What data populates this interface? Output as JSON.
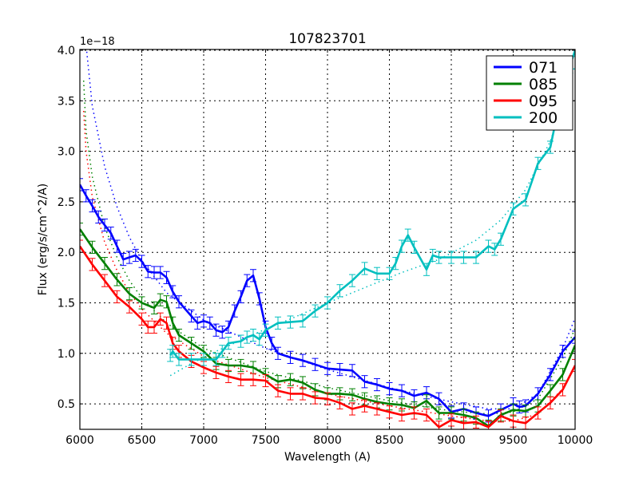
{
  "figure": {
    "title": "107823701",
    "xlabel": "Wavelength (A)",
    "ylabel": "Flux (erg/s/cm^2/A)",
    "offset_label": "1e−18"
  },
  "chart_data": {
    "type": "line",
    "title": "107823701",
    "xlabel": "Wavelength (A)",
    "ylabel": "Flux (erg/s/cm^2/A)",
    "y_scale_factor": "1e-18",
    "xlim": [
      6000,
      10000
    ],
    "ylim": [
      0.25,
      4.02
    ],
    "xticks": [
      6000,
      6500,
      7000,
      7500,
      8000,
      8500,
      9000,
      9500,
      10000
    ],
    "xtick_labels": [
      "6000",
      "6500",
      "7000",
      "7500",
      "8000",
      "8500",
      "9000",
      "9500",
      "10000"
    ],
    "yticks": [
      0.5,
      1.0,
      1.5,
      2.0,
      2.5,
      3.0,
      3.5,
      4.0
    ],
    "ytick_labels": [
      "0.5",
      "1.0",
      "1.5",
      "2.0",
      "2.5",
      "3.0",
      "3.5",
      "4.0"
    ],
    "grid": true,
    "legend_position": "upper right",
    "series": [
      {
        "name": "071",
        "color": "#0000ff",
        "error": 0.06,
        "x": [
          6000,
          6050,
          6100,
          6150,
          6200,
          6250,
          6300,
          6350,
          6400,
          6450,
          6500,
          6550,
          6600,
          6650,
          6700,
          6750,
          6800,
          6900,
          6950,
          7000,
          7050,
          7100,
          7150,
          7200,
          7250,
          7300,
          7350,
          7400,
          7450,
          7500,
          7550,
          7600,
          7700,
          7800,
          7900,
          8000,
          8100,
          8200,
          8300,
          8400,
          8500,
          8600,
          8700,
          8800,
          8900,
          9000,
          9100,
          9200,
          9300,
          9400,
          9500,
          9550,
          9600,
          9700,
          9800,
          9900,
          10000
        ],
        "values": [
          2.67,
          2.56,
          2.46,
          2.35,
          2.27,
          2.19,
          2.06,
          1.93,
          1.95,
          1.97,
          1.91,
          1.81,
          1.8,
          1.8,
          1.75,
          1.61,
          1.51,
          1.37,
          1.3,
          1.32,
          1.3,
          1.23,
          1.21,
          1.26,
          1.42,
          1.56,
          1.72,
          1.77,
          1.54,
          1.26,
          1.1,
          1.0,
          0.96,
          0.93,
          0.89,
          0.85,
          0.84,
          0.83,
          0.72,
          0.69,
          0.65,
          0.63,
          0.58,
          0.61,
          0.55,
          0.42,
          0.45,
          0.41,
          0.38,
          0.44,
          0.5,
          0.47,
          0.48,
          0.6,
          0.79,
          1.02,
          1.16
        ],
        "fit": {
          "x": [
            6000,
            6050,
            6100,
            6200,
            6300,
            6400,
            6500,
            6700,
            7000,
            7500,
            8000,
            8500,
            9000,
            9300,
            9500,
            9700,
            9900,
            10000
          ],
          "values": [
            5.2,
            4.05,
            3.45,
            2.85,
            2.45,
            2.15,
            1.92,
            1.6,
            1.33,
            1.05,
            0.84,
            0.66,
            0.52,
            0.45,
            0.45,
            0.6,
            1.05,
            1.35
          ]
        }
      },
      {
        "name": "085",
        "color": "#008000",
        "error": 0.06,
        "x": [
          6000,
          6100,
          6200,
          6300,
          6400,
          6500,
          6600,
          6650,
          6700,
          6750,
          6800,
          6900,
          7000,
          7100,
          7200,
          7300,
          7400,
          7500,
          7600,
          7700,
          7800,
          7900,
          8000,
          8100,
          8200,
          8300,
          8400,
          8500,
          8600,
          8700,
          8800,
          8900,
          9000,
          9100,
          9200,
          9300,
          9400,
          9500,
          9600,
          9700,
          9800,
          9900,
          10000
        ],
        "values": [
          2.23,
          2.05,
          1.89,
          1.73,
          1.59,
          1.5,
          1.45,
          1.53,
          1.51,
          1.3,
          1.18,
          1.1,
          1.02,
          0.9,
          0.88,
          0.88,
          0.86,
          0.79,
          0.72,
          0.74,
          0.71,
          0.64,
          0.6,
          0.6,
          0.59,
          0.55,
          0.52,
          0.5,
          0.49,
          0.46,
          0.53,
          0.41,
          0.41,
          0.39,
          0.36,
          0.28,
          0.39,
          0.44,
          0.43,
          0.48,
          0.63,
          0.79,
          1.08
        ],
        "fit": {
          "x": [
            6030,
            6050,
            6100,
            6200,
            6300,
            6400,
            6500,
            6700,
            7000,
            7500,
            8000,
            8500,
            9000,
            9300,
            9500,
            9700,
            9900,
            10000
          ],
          "values": [
            3.7,
            3.2,
            2.75,
            2.25,
            1.95,
            1.72,
            1.55,
            1.3,
            1.05,
            0.82,
            0.66,
            0.53,
            0.43,
            0.4,
            0.42,
            0.55,
            0.95,
            1.25
          ]
        }
      },
      {
        "name": "095",
        "color": "#ff0000",
        "error": 0.06,
        "x": [
          6000,
          6100,
          6200,
          6300,
          6400,
          6500,
          6550,
          6600,
          6650,
          6700,
          6750,
          6800,
          6900,
          7000,
          7100,
          7200,
          7300,
          7400,
          7500,
          7600,
          7700,
          7800,
          7900,
          8000,
          8100,
          8200,
          8300,
          8400,
          8500,
          8600,
          8700,
          8800,
          8900,
          9000,
          9100,
          9200,
          9300,
          9400,
          9500,
          9600,
          9700,
          9800,
          9900,
          10000
        ],
        "values": [
          2.06,
          1.88,
          1.72,
          1.56,
          1.46,
          1.34,
          1.26,
          1.26,
          1.34,
          1.3,
          1.1,
          1.02,
          0.92,
          0.86,
          0.81,
          0.77,
          0.74,
          0.74,
          0.73,
          0.63,
          0.6,
          0.6,
          0.56,
          0.55,
          0.51,
          0.45,
          0.48,
          0.45,
          0.42,
          0.39,
          0.41,
          0.39,
          0.27,
          0.34,
          0.31,
          0.32,
          0.27,
          0.38,
          0.33,
          0.31,
          0.41,
          0.51,
          0.64,
          0.88
        ],
        "fit": {
          "x": [
            6030,
            6050,
            6100,
            6200,
            6300,
            6400,
            6500,
            6700,
            7000,
            7500,
            8000,
            8500,
            9000,
            9300,
            9500,
            9700,
            9900,
            10000
          ],
          "values": [
            3.4,
            3.0,
            2.55,
            2.1,
            1.82,
            1.6,
            1.44,
            1.2,
            0.97,
            0.76,
            0.6,
            0.48,
            0.38,
            0.33,
            0.33,
            0.4,
            0.65,
            0.88
          ]
        }
      },
      {
        "name": "200",
        "color": "#00bfbf",
        "error": 0.06,
        "x": [
          6730,
          6750,
          6800,
          6900,
          7000,
          7100,
          7150,
          7200,
          7300,
          7350,
          7400,
          7450,
          7500,
          7600,
          7700,
          7800,
          7900,
          8000,
          8100,
          8200,
          8300,
          8400,
          8500,
          8550,
          8600,
          8650,
          8700,
          8800,
          8850,
          8900,
          9000,
          9100,
          9200,
          9300,
          9350,
          9400,
          9500,
          9600,
          9700,
          9800,
          9900,
          10000
        ],
        "values": [
          0.98,
          1.02,
          0.94,
          0.94,
          0.94,
          0.94,
          1.02,
          1.1,
          1.12,
          1.16,
          1.18,
          1.14,
          1.23,
          1.3,
          1.31,
          1.32,
          1.42,
          1.5,
          1.62,
          1.72,
          1.84,
          1.79,
          1.79,
          1.89,
          2.06,
          2.17,
          2.05,
          1.83,
          1.97,
          1.95,
          1.95,
          1.95,
          1.95,
          2.06,
          2.03,
          2.13,
          2.43,
          2.52,
          2.88,
          3.04,
          3.63,
          4.0
        ],
        "fit": {
          "x": [
            6730,
            6900,
            7100,
            7300,
            7500,
            7700,
            8000,
            8300,
            8600,
            8900,
            9200,
            9400,
            9600,
            9800,
            10000
          ],
          "values": [
            0.78,
            0.9,
            1.02,
            1.13,
            1.24,
            1.34,
            1.5,
            1.65,
            1.8,
            1.93,
            2.12,
            2.32,
            2.62,
            3.1,
            3.85
          ]
        }
      }
    ]
  }
}
